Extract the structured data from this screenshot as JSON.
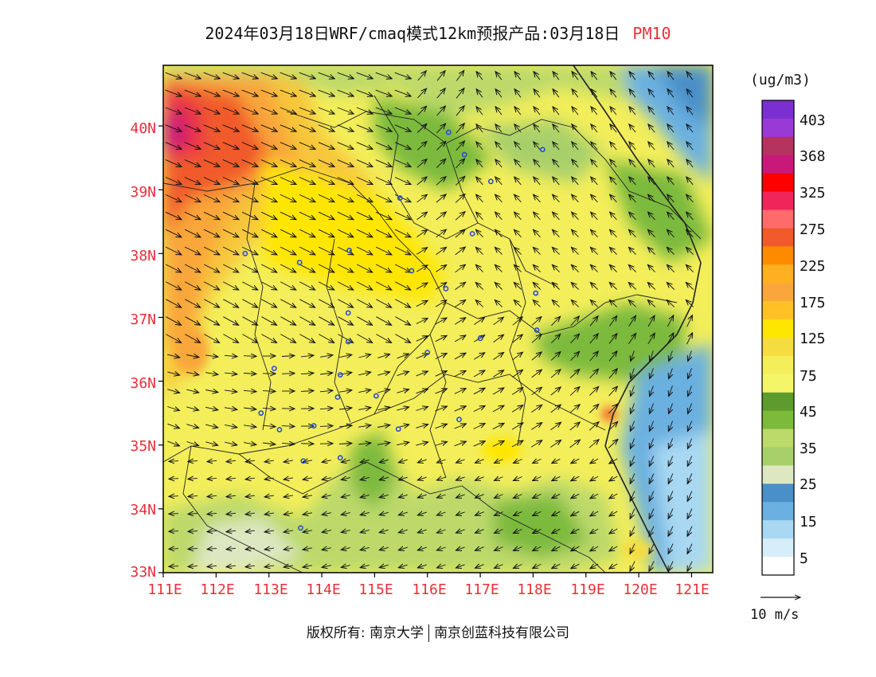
{
  "title": {
    "main": "2024年03月18日WRF/cmaq模式12km预报产品:03月18日",
    "species": "PM10"
  },
  "map": {
    "lat_labels": [
      "40N",
      "39N",
      "38N",
      "37N",
      "36N",
      "35N",
      "34N",
      "33N"
    ],
    "lon_labels": [
      "111E",
      "112E",
      "113E",
      "114E",
      "115E",
      "116E",
      "117E",
      "118E",
      "119E",
      "120E",
      "121E"
    ],
    "lon_range": [
      111,
      121.4
    ],
    "lat_range": [
      33,
      40.95
    ]
  },
  "colorbar": {
    "unit": "(ug/m3)",
    "labels": [
      "403",
      "368",
      "325",
      "275",
      "225",
      "175",
      "125",
      "75",
      "45",
      "35",
      "25",
      "15",
      "5"
    ],
    "colors": [
      "#7b2fd1",
      "#9a3ad6",
      "#b5335f",
      "#c8187a",
      "#ff0000",
      "#f0265a",
      "#ff6b6b",
      "#f15a2a",
      "#ff8c00",
      "#ffb020",
      "#f9a63a",
      "#ffc125",
      "#ffe600",
      "#f5dc40",
      "#f3ee5a",
      "#f5f56a",
      "#5e9b2e",
      "#7cba3c",
      "#bcd96a",
      "#a8d06a",
      "#dde8c2",
      "#4a8fc8",
      "#6ab0e0",
      "#a8d8f2",
      "#d6eefa",
      "#ffffff"
    ],
    "levels": [
      403,
      368,
      325,
      275,
      225,
      175,
      125,
      75,
      45,
      35,
      25,
      15,
      5
    ]
  },
  "wind": {
    "reference_label": "10 m/s"
  },
  "cities": [
    [
      116.4,
      39.9
    ],
    [
      116.7,
      39.55
    ],
    [
      117.2,
      39.13
    ],
    [
      118.18,
      39.63
    ],
    [
      115.48,
      38.87
    ],
    [
      116.85,
      38.31
    ],
    [
      114.52,
      38.05
    ],
    [
      112.55,
      38.0
    ],
    [
      113.58,
      37.86
    ],
    [
      115.7,
      37.73
    ],
    [
      116.35,
      37.45
    ],
    [
      114.5,
      37.07
    ],
    [
      118.05,
      37.38
    ],
    [
      114.5,
      36.62
    ],
    [
      116.0,
      36.45
    ],
    [
      117.0,
      36.67
    ],
    [
      118.07,
      36.8
    ],
    [
      113.1,
      36.2
    ],
    [
      114.35,
      36.1
    ],
    [
      114.3,
      35.75
    ],
    [
      115.03,
      35.77
    ],
    [
      115.45,
      35.25
    ],
    [
      116.6,
      35.4
    ],
    [
      112.85,
      35.5
    ],
    [
      113.2,
      35.24
    ],
    [
      113.85,
      35.3
    ],
    [
      114.35,
      34.8
    ],
    [
      113.65,
      34.75
    ],
    [
      113.6,
      33.7
    ]
  ],
  "footer": {
    "left": "版权所有: 南京大学",
    "right": "南京创蓝科技有限公司"
  }
}
